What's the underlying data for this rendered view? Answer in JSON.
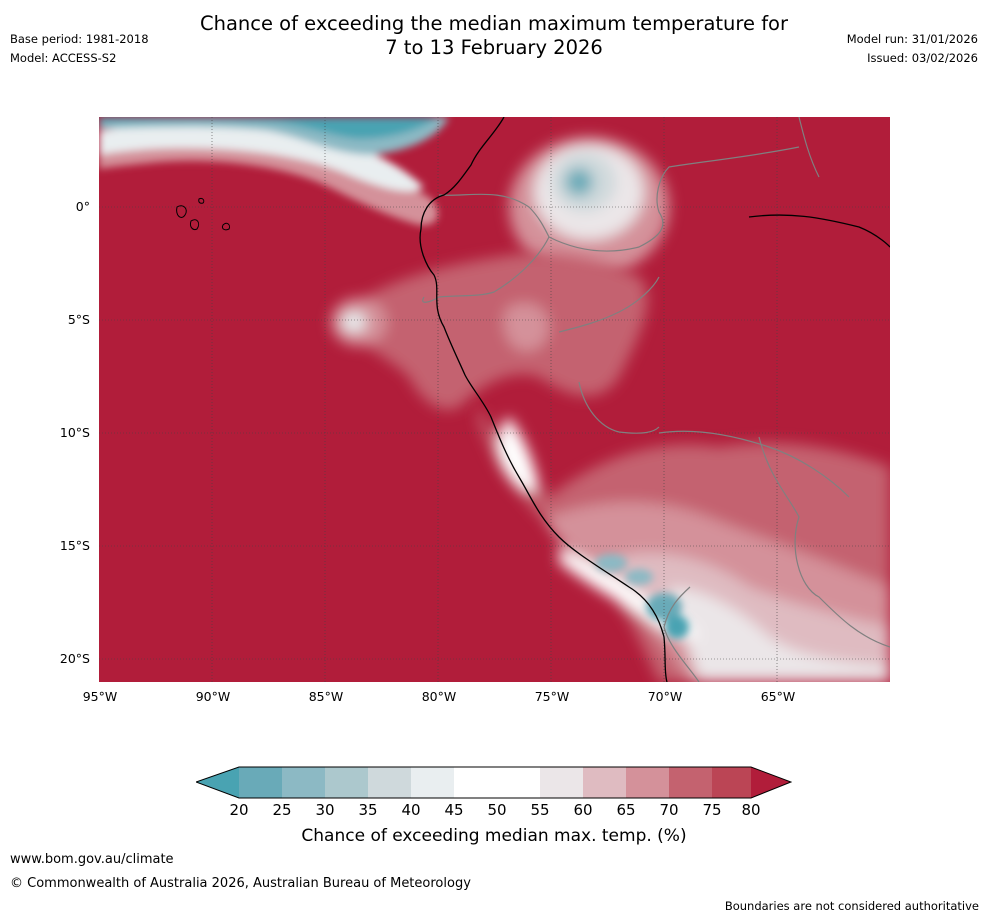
{
  "header": {
    "title_line1": "Chance of exceeding the median maximum temperature for",
    "title_line2": "7 to 13 February 2026",
    "base_period": "Base period: 1981-2018",
    "model": "Model: ACCESS-S2",
    "model_run": "Model run: 31/01/2026",
    "issued": "Issued: 03/02/2026"
  },
  "map": {
    "lat_labels": [
      "0°",
      "5°S",
      "10°S",
      "15°S",
      "20°S"
    ],
    "lon_labels": [
      "95°W",
      "90°W",
      "85°W",
      "80°W",
      "75°W",
      "70°W",
      "65°W"
    ],
    "colors": {
      "ocean_high": "#b11d3a",
      "land_border": "#808080",
      "coastline": "#000000"
    }
  },
  "colorbar": {
    "ticks": [
      "20",
      "25",
      "30",
      "35",
      "40",
      "45",
      "50",
      "55",
      "60",
      "65",
      "70",
      "75",
      "80"
    ],
    "colors": [
      "#49a3b2",
      "#69aab8",
      "#8cb9c4",
      "#acc8cd",
      "#cfd9dc",
      "#e9eef0",
      "#ffffff",
      "#ffffff",
      "#ebe6e8",
      "#dfbbc1",
      "#d4919a",
      "#c4626f",
      "#bb4555",
      "#b11d3a"
    ],
    "title": "Chance of exceeding median max. temp. (%)"
  },
  "footer": {
    "url": "www.bom.gov.au/climate",
    "copyright": "© Commonwealth of Australia 2026, Australian Bureau of Meteorology",
    "disclaimer": "Boundaries are not considered authoritative"
  }
}
